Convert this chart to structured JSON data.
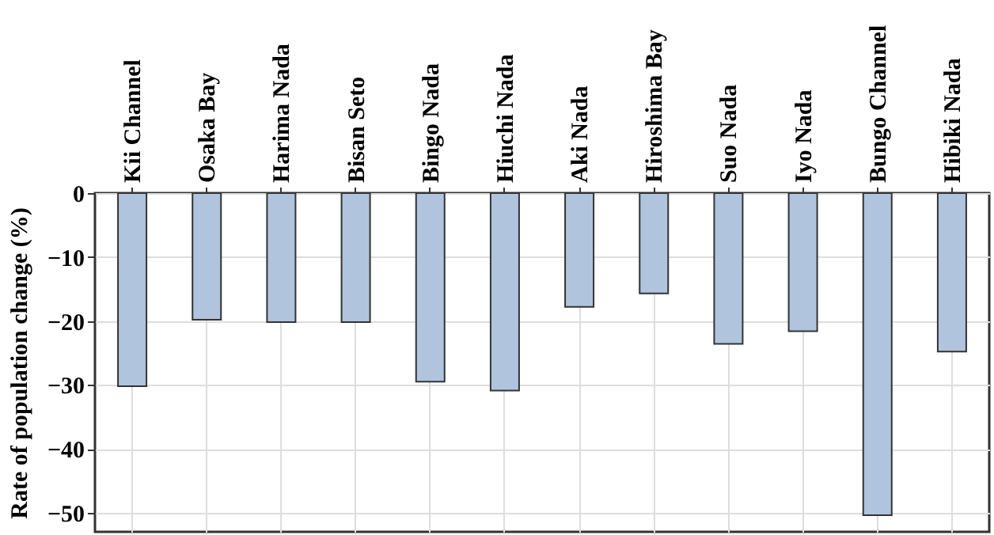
{
  "chart_data": {
    "type": "bar",
    "ylabel": "Rate of population change (%)",
    "categories": [
      "Kii Channel",
      "Osaka Bay",
      "Harima Nada",
      "Bisan Seto",
      "Bingo Nada",
      "Hiuchi Nada",
      "Aki Nada",
      "Hiroshima Bay",
      "Suo Nada",
      "Iyo Nada",
      "Bungo Channel",
      "Hibiki Nada"
    ],
    "values": [
      -30.2,
      -19.8,
      -20.2,
      -20.2,
      -29.5,
      -30.9,
      -17.8,
      -15.7,
      -23.6,
      -21.6,
      -50.4,
      -24.8
    ],
    "color": "#b0c4de",
    "ylim": [
      -53,
      0
    ],
    "yticks": [
      0,
      -10,
      -20,
      -30,
      -40,
      -50
    ],
    "grid": true
  }
}
